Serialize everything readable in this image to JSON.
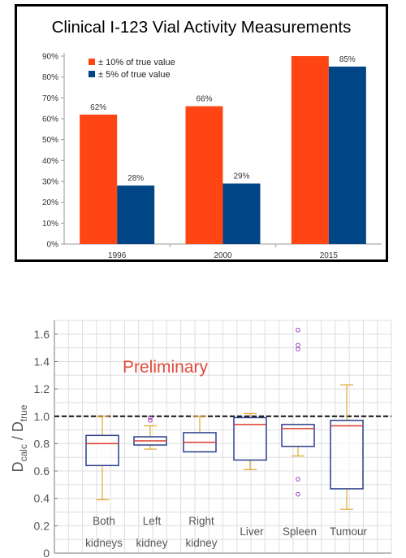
{
  "chart_data": [
    {
      "type": "bar",
      "title": "Clinical I-123 Vial Activity Measurements",
      "categories": [
        "1996",
        "2000",
        "2015"
      ],
      "series": [
        {
          "name": "± 10% of true value",
          "values": [
            62,
            66,
            94
          ],
          "labels": [
            "62%",
            "66%",
            ""
          ],
          "color": "#ff4513"
        },
        {
          "name": "±   5% of true value",
          "values": [
            28,
            29,
            85
          ],
          "labels": [
            "28%",
            "29%",
            "85%"
          ],
          "color": "#004586"
        }
      ],
      "ylim": [
        0,
        90
      ],
      "yticks": [
        "0%",
        "10%",
        "20%",
        "30%",
        "40%",
        "50%",
        "60%",
        "70%",
        "80%",
        "90%"
      ],
      "legend_position": "top-left",
      "grid": false
    },
    {
      "type": "box",
      "annotation": "Preliminary",
      "ylabel_main": "D",
      "ylabel_sub1": "calc",
      "ylabel_sep": " / D",
      "ylabel_sub2": "true",
      "ylim": [
        0,
        1.7
      ],
      "yticks": [
        "0",
        "0.2",
        "0.4",
        "0.6",
        "0.8",
        "1.0",
        "1.2",
        "1.4",
        "1.6"
      ],
      "reference_line": 1.0,
      "grid": true,
      "categories": [
        {
          "line1": "Both",
          "line2": "kidneys",
          "q1": 0.64,
          "median": 0.8,
          "q3": 0.86,
          "whisker_low": 0.39,
          "whisker_high": 1.0,
          "outliers": []
        },
        {
          "line1": "Left",
          "line2": "kidney",
          "q1": 0.79,
          "median": 0.82,
          "q3": 0.85,
          "whisker_low": 0.76,
          "whisker_high": 0.93,
          "outliers": [
            0.97,
            0.99
          ]
        },
        {
          "line1": "Right",
          "line2": "kidney",
          "q1": 0.74,
          "median": 0.81,
          "q3": 0.88,
          "whisker_low": 0.74,
          "whisker_high": 1.0,
          "outliers": []
        },
        {
          "line1": "Liver",
          "line2": "",
          "q1": 0.68,
          "median": 0.94,
          "q3": 0.99,
          "whisker_low": 0.61,
          "whisker_high": 1.02,
          "outliers": []
        },
        {
          "line1": "Spleen",
          "line2": "",
          "q1": 0.78,
          "median": 0.91,
          "q3": 0.94,
          "whisker_low": 0.71,
          "whisker_high": 0.94,
          "outliers": [
            0.43,
            0.54,
            1.49,
            1.52,
            1.63
          ]
        },
        {
          "line1": "Tumour",
          "line2": "",
          "q1": 0.47,
          "median": 0.93,
          "q3": 0.97,
          "whisker_low": 0.32,
          "whisker_high": 1.23,
          "outliers": []
        }
      ],
      "colors": {
        "box": "#2b3f8c",
        "median": "#d93c2f",
        "whisker": "#e0a82e",
        "outlier": "#a040c0",
        "annotation": "#e04a3a",
        "grid": "#dedede",
        "axis_text": "#555555"
      }
    }
  ]
}
